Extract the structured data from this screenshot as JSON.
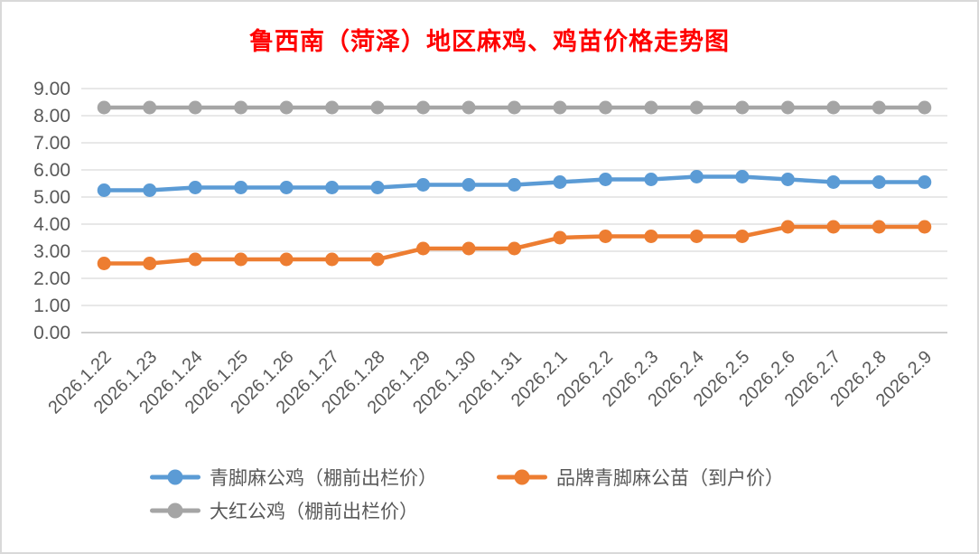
{
  "window": {
    "background": "#ffffff",
    "frame_border_color": "#d9d9d9"
  },
  "chart_data": {
    "type": "line",
    "title": "鲁西南（菏泽）地区麻鸡、鸡苗价格走势图",
    "title_color": "#ff0000",
    "x": [
      "2026.1.22",
      "2026.1.23",
      "2026.1.24",
      "2026.1.25",
      "2026.1.26",
      "2026.1.27",
      "2026.1.28",
      "2026.1.29",
      "2026.1.30",
      "2026.1.31",
      "2026.2.1",
      "2026.2.2",
      "2026.2.3",
      "2026.2.4",
      "2026.2.5",
      "2026.2.6",
      "2026.2.7",
      "2026.2.8",
      "2026.2.9"
    ],
    "series": [
      {
        "name": "青脚麻公鸡（棚前出栏价）",
        "color": "#5b9bd5",
        "values": [
          5.25,
          5.25,
          5.35,
          5.35,
          5.35,
          5.35,
          5.35,
          5.45,
          5.45,
          5.45,
          5.55,
          5.65,
          5.65,
          5.75,
          5.75,
          5.65,
          5.55,
          5.55,
          5.55
        ]
      },
      {
        "name": "品牌青脚麻公苗（到户价）",
        "color": "#ed7d31",
        "values": [
          2.55,
          2.55,
          2.7,
          2.7,
          2.7,
          2.7,
          2.7,
          3.1,
          3.1,
          3.1,
          3.5,
          3.55,
          3.55,
          3.55,
          3.55,
          3.9,
          3.9,
          3.9,
          3.9
        ]
      },
      {
        "name": "大红公鸡（棚前出栏价）",
        "color": "#a5a5a5",
        "values": [
          8.3,
          8.3,
          8.3,
          8.3,
          8.3,
          8.3,
          8.3,
          8.3,
          8.3,
          8.3,
          8.3,
          8.3,
          8.3,
          8.3,
          8.3,
          8.3,
          8.3,
          8.3,
          8.3
        ]
      }
    ],
    "ylim": [
      0,
      9
    ],
    "yticks": [
      "0.00",
      "1.00",
      "2.00",
      "3.00",
      "4.00",
      "5.00",
      "6.00",
      "7.00",
      "8.00",
      "9.00"
    ],
    "grid": true,
    "gridline_color": "#d9d9d9",
    "axis_line_color": "#bfbfbf",
    "tick_label_color": "#595959",
    "x_label_rotation_deg": -45,
    "legend_position": "bottom"
  }
}
